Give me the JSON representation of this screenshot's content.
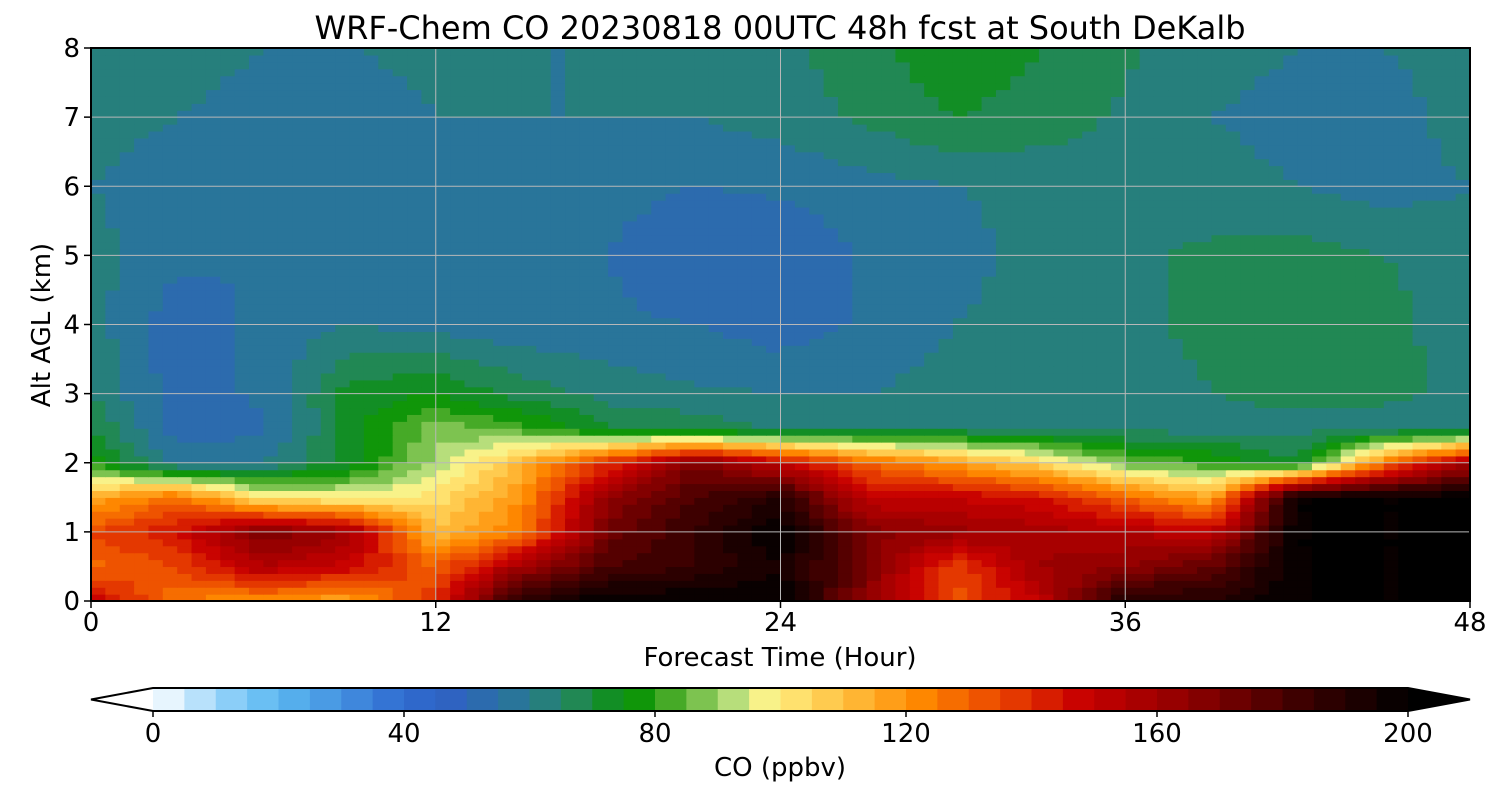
{
  "chart_data": {
    "type": "heatmap",
    "title": "WRF-Chem CO  20230818 00UTC 48h fcst at South DeKalb",
    "xlabel": "Forecast Time (Hour)",
    "ylabel": "Alt AGL (km)",
    "xlim": [
      0,
      48
    ],
    "ylim": [
      0,
      8
    ],
    "xticks": [
      0,
      12,
      24,
      36,
      48
    ],
    "yticks": [
      0,
      1,
      2,
      3,
      4,
      5,
      6,
      7,
      8
    ],
    "grid": true,
    "colorbar": {
      "label": "CO  (ppbv)",
      "min": 0,
      "max": 200,
      "step": 5,
      "ticks": [
        0,
        40,
        80,
        120,
        160,
        200
      ],
      "extend": "both",
      "orientation": "horizontal",
      "stops": [
        {
          "value": 0,
          "color": "#ffffff"
        },
        {
          "value": 12,
          "color": "#8ecff8"
        },
        {
          "value": 20,
          "color": "#5ab8f0"
        },
        {
          "value": 40,
          "color": "#2f6ad0"
        },
        {
          "value": 48,
          "color": "#2f62c0"
        },
        {
          "value": 60,
          "color": "#287a90"
        },
        {
          "value": 70,
          "color": "#1e8c40"
        },
        {
          "value": 76,
          "color": "#009000"
        },
        {
          "value": 84,
          "color": "#56b030"
        },
        {
          "value": 92,
          "color": "#b0dc7a"
        },
        {
          "value": 98,
          "color": "#fff48a"
        },
        {
          "value": 110,
          "color": "#ffc040"
        },
        {
          "value": 122,
          "color": "#ff8a00"
        },
        {
          "value": 136,
          "color": "#e84000"
        },
        {
          "value": 148,
          "color": "#c80000"
        },
        {
          "value": 165,
          "color": "#8e0000"
        },
        {
          "value": 182,
          "color": "#400000"
        },
        {
          "value": 200,
          "color": "#000000"
        }
      ]
    },
    "x": [
      0,
      3,
      6,
      9,
      12,
      15,
      18,
      21,
      24,
      27,
      30,
      33,
      36,
      39,
      42,
      45,
      48
    ],
    "y": [
      0,
      0.5,
      1,
      1.5,
      2,
      2.5,
      3,
      4,
      5,
      6,
      7,
      8
    ],
    "z": [
      [
        150,
        125,
        120,
        115,
        140,
        190,
        200,
        200,
        200,
        165,
        132,
        150,
        192,
        190,
        200,
        200,
        200
      ],
      [
        128,
        135,
        155,
        148,
        130,
        160,
        180,
        185,
        195,
        170,
        135,
        160,
        165,
        175,
        200,
        200,
        200
      ],
      [
        135,
        145,
        170,
        160,
        110,
        125,
        172,
        185,
        200,
        168,
        162,
        158,
        155,
        150,
        200,
        200,
        200
      ],
      [
        115,
        128,
        100,
        98,
        102,
        120,
        165,
        180,
        190,
        150,
        150,
        145,
        130,
        115,
        200,
        200,
        200
      ],
      [
        78,
        58,
        60,
        72,
        92,
        112,
        140,
        170,
        150,
        130,
        118,
        105,
        86,
        80,
        70,
        125,
        160
      ],
      [
        70,
        52,
        54,
        72,
        88,
        82,
        70,
        68,
        64,
        64,
        65,
        64,
        63,
        63,
        63,
        63,
        63
      ],
      [
        65,
        52,
        56,
        72,
        75,
        68,
        63,
        61,
        60,
        60,
        62,
        62,
        63,
        65,
        67,
        66,
        64
      ],
      [
        62,
        52,
        56,
        60,
        58,
        56,
        56,
        55,
        52,
        56,
        60,
        62,
        64,
        66,
        68,
        67,
        62
      ],
      [
        62,
        56,
        55,
        56,
        56,
        55,
        55,
        50,
        50,
        56,
        58,
        62,
        64,
        66,
        67,
        65,
        62
      ],
      [
        60,
        57,
        55,
        56,
        57,
        57,
        57,
        55,
        56,
        58,
        60,
        61,
        63,
        62,
        60,
        58,
        60
      ],
      [
        62,
        60,
        58,
        58,
        60,
        60,
        60,
        60,
        62,
        66,
        70,
        68,
        64,
        60,
        58,
        58,
        62
      ],
      [
        64,
        62,
        60,
        60,
        61,
        60,
        60,
        62,
        64,
        68,
        74,
        70,
        66,
        62,
        60,
        60,
        62
      ]
    ]
  }
}
